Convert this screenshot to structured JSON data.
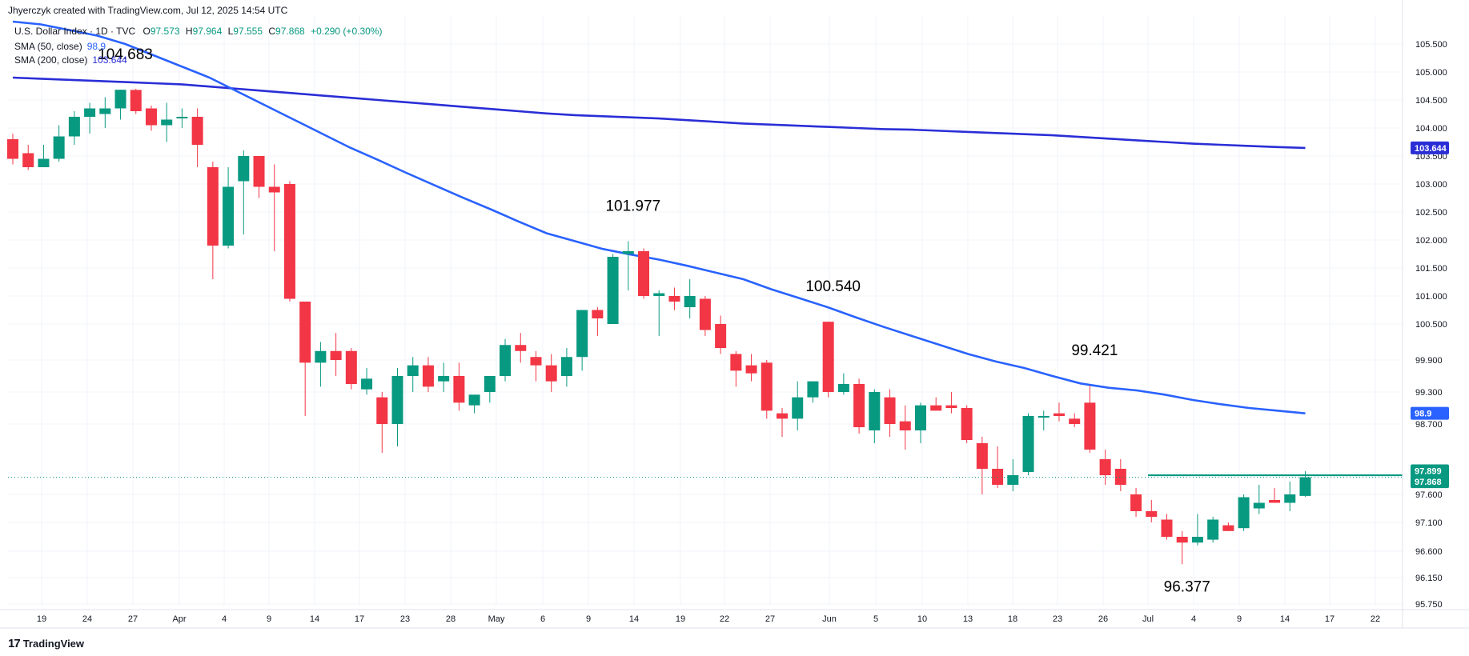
{
  "header": {
    "attribution": "Jhyerczyk created with TradingView.com, Jul 12, 2025 14:54 UTC",
    "symbol": "U.S. Dollar Index · 1D · TVC",
    "o_label": "O",
    "o": "97.573",
    "h_label": "H",
    "h": "97.964",
    "l_label": "L",
    "l": "97.555",
    "c_label": "C",
    "c": "97.868",
    "change": "+0.290 (+0.30%)"
  },
  "indicators": [
    {
      "label": "SMA (50, close)",
      "value": "98.9",
      "color": "#2962ff"
    },
    {
      "label": "SMA (200, close)",
      "value": "103.644",
      "color": "#2a2ed6"
    }
  ],
  "footer": {
    "logo": "17",
    "brand": "TradingView"
  },
  "colors": {
    "up": "#089981",
    "down": "#f23645",
    "sma50": "#2962ff",
    "sma200": "#2a2ed6",
    "resistance": "#089981"
  },
  "chart_data": {
    "type": "candlestick",
    "ylim": [
      95.75,
      105.85
    ],
    "y_ticks": [
      "105.500",
      "105.000",
      "104.500",
      "104.000",
      "103.500",
      "103.000",
      "102.500",
      "102.000",
      "101.500",
      "101.000",
      "100.500",
      "99.900",
      "99.300",
      "98.700",
      "97.600",
      "97.100",
      "96.600",
      "96.150",
      "95.750"
    ],
    "x_ticks": [
      "19",
      "24",
      "27",
      "Apr",
      "4",
      "9",
      "14",
      "17",
      "23",
      "28",
      "May",
      "6",
      "9",
      "14",
      "19",
      "22",
      "27",
      "Jun",
      "5",
      "10",
      "13",
      "18",
      "23",
      "26",
      "Jul",
      "4",
      "9",
      "14",
      "17",
      "22"
    ],
    "candles": [
      {
        "o": 103.8,
        "h": 103.9,
        "l": 103.35,
        "c": 103.45
      },
      {
        "o": 103.55,
        "h": 103.7,
        "l": 103.25,
        "c": 103.3
      },
      {
        "o": 103.3,
        "h": 103.7,
        "l": 103.3,
        "c": 103.45
      },
      {
        "o": 103.45,
        "h": 104.05,
        "l": 103.4,
        "c": 103.85
      },
      {
        "o": 103.85,
        "h": 104.3,
        "l": 103.7,
        "c": 104.2
      },
      {
        "o": 104.2,
        "h": 104.45,
        "l": 103.9,
        "c": 104.35
      },
      {
        "o": 104.25,
        "h": 104.55,
        "l": 104.0,
        "c": 104.35
      },
      {
        "o": 104.35,
        "h": 104.683,
        "l": 104.15,
        "c": 104.683
      },
      {
        "o": 104.68,
        "h": 104.7,
        "l": 104.25,
        "c": 104.3
      },
      {
        "o": 104.35,
        "h": 104.4,
        "l": 103.95,
        "c": 104.05
      },
      {
        "o": 104.05,
        "h": 104.45,
        "l": 103.75,
        "c": 104.15
      },
      {
        "o": 104.2,
        "h": 104.35,
        "l": 104.0,
        "c": 104.2
      },
      {
        "o": 104.2,
        "h": 104.35,
        "l": 103.3,
        "c": 103.7
      },
      {
        "o": 103.3,
        "h": 103.4,
        "l": 101.3,
        "c": 101.9
      },
      {
        "o": 101.9,
        "h": 103.3,
        "l": 101.85,
        "c": 102.95
      },
      {
        "o": 103.05,
        "h": 103.6,
        "l": 102.1,
        "c": 103.5
      },
      {
        "o": 103.5,
        "h": 103.5,
        "l": 102.75,
        "c": 102.95
      },
      {
        "o": 102.95,
        "h": 103.35,
        "l": 101.8,
        "c": 102.85
      },
      {
        "o": 103.0,
        "h": 103.05,
        "l": 100.9,
        "c": 100.95
      },
      {
        "o": 100.9,
        "h": 100.9,
        "l": 98.85,
        "c": 99.85
      },
      {
        "o": 99.85,
        "h": 100.2,
        "l": 99.4,
        "c": 100.05
      },
      {
        "o": 100.05,
        "h": 100.35,
        "l": 99.6,
        "c": 99.9
      },
      {
        "o": 100.05,
        "h": 100.1,
        "l": 99.35,
        "c": 99.45
      },
      {
        "o": 99.35,
        "h": 99.75,
        "l": 99.25,
        "c": 99.55
      },
      {
        "o": 99.2,
        "h": 99.3,
        "l": 98.25,
        "c": 98.7
      },
      {
        "o": 98.7,
        "h": 99.75,
        "l": 98.35,
        "c": 99.6
      },
      {
        "o": 99.6,
        "h": 99.95,
        "l": 99.3,
        "c": 99.8
      },
      {
        "o": 99.8,
        "h": 99.95,
        "l": 99.3,
        "c": 99.4
      },
      {
        "o": 99.5,
        "h": 99.85,
        "l": 99.3,
        "c": 99.6
      },
      {
        "o": 99.6,
        "h": 99.85,
        "l": 98.95,
        "c": 99.1
      },
      {
        "o": 99.05,
        "h": 99.25,
        "l": 98.9,
        "c": 99.25
      },
      {
        "o": 99.3,
        "h": 99.6,
        "l": 99.1,
        "c": 99.6
      },
      {
        "o": 99.6,
        "h": 100.25,
        "l": 99.5,
        "c": 100.15
      },
      {
        "o": 100.15,
        "h": 100.35,
        "l": 99.85,
        "c": 100.05
      },
      {
        "o": 99.95,
        "h": 100.05,
        "l": 99.5,
        "c": 99.8
      },
      {
        "o": 99.8,
        "h": 100.0,
        "l": 99.3,
        "c": 99.5
      },
      {
        "o": 99.6,
        "h": 100.1,
        "l": 99.4,
        "c": 99.95
      },
      {
        "o": 99.95,
        "h": 100.75,
        "l": 99.7,
        "c": 100.75
      },
      {
        "o": 100.75,
        "h": 100.8,
        "l": 100.3,
        "c": 100.6
      },
      {
        "o": 100.5,
        "h": 101.75,
        "l": 100.5,
        "c": 101.7
      },
      {
        "o": 101.75,
        "h": 101.977,
        "l": 101.1,
        "c": 101.8
      },
      {
        "o": 101.8,
        "h": 101.85,
        "l": 100.95,
        "c": 101.0
      },
      {
        "o": 101.0,
        "h": 101.1,
        "l": 100.3,
        "c": 101.05
      },
      {
        "o": 101.0,
        "h": 101.15,
        "l": 100.75,
        "c": 100.9
      },
      {
        "o": 100.8,
        "h": 101.3,
        "l": 100.6,
        "c": 101.0
      },
      {
        "o": 100.95,
        "h": 101.0,
        "l": 100.3,
        "c": 100.4
      },
      {
        "o": 100.5,
        "h": 100.65,
        "l": 100.0,
        "c": 100.1
      },
      {
        "o": 100.0,
        "h": 100.05,
        "l": 99.4,
        "c": 99.7
      },
      {
        "o": 99.8,
        "h": 100.0,
        "l": 99.5,
        "c": 99.65
      },
      {
        "o": 99.85,
        "h": 99.9,
        "l": 98.8,
        "c": 98.95
      },
      {
        "o": 98.9,
        "h": 99.0,
        "l": 98.5,
        "c": 98.8
      },
      {
        "o": 98.8,
        "h": 99.5,
        "l": 98.6,
        "c": 99.2
      },
      {
        "o": 99.2,
        "h": 99.5,
        "l": 99.1,
        "c": 99.5
      },
      {
        "o": 100.54,
        "h": 100.54,
        "l": 99.2,
        "c": 99.3
      },
      {
        "o": 99.3,
        "h": 99.65,
        "l": 99.25,
        "c": 99.45
      },
      {
        "o": 99.45,
        "h": 99.55,
        "l": 98.55,
        "c": 98.65
      },
      {
        "o": 98.6,
        "h": 99.35,
        "l": 98.4,
        "c": 99.3
      },
      {
        "o": 99.2,
        "h": 99.35,
        "l": 98.5,
        "c": 98.7
      },
      {
        "o": 98.75,
        "h": 99.05,
        "l": 98.3,
        "c": 98.6
      },
      {
        "o": 98.6,
        "h": 99.1,
        "l": 98.4,
        "c": 99.05
      },
      {
        "o": 99.05,
        "h": 99.2,
        "l": 98.95,
        "c": 98.95
      },
      {
        "o": 99.05,
        "h": 99.3,
        "l": 98.9,
        "c": 99.0
      },
      {
        "o": 99.0,
        "h": 99.05,
        "l": 98.4,
        "c": 98.45
      },
      {
        "o": 98.4,
        "h": 98.5,
        "l": 97.6,
        "c": 98.0
      },
      {
        "o": 98.0,
        "h": 98.35,
        "l": 97.7,
        "c": 97.75
      },
      {
        "o": 97.75,
        "h": 98.15,
        "l": 97.65,
        "c": 97.9
      },
      {
        "o": 97.95,
        "h": 98.9,
        "l": 97.9,
        "c": 98.85
      },
      {
        "o": 98.85,
        "h": 98.95,
        "l": 98.6,
        "c": 98.85
      },
      {
        "o": 98.9,
        "h": 99.1,
        "l": 98.75,
        "c": 98.85
      },
      {
        "o": 98.8,
        "h": 98.9,
        "l": 98.65,
        "c": 98.7
      },
      {
        "o": 99.1,
        "h": 99.421,
        "l": 98.25,
        "c": 98.3
      },
      {
        "o": 98.15,
        "h": 98.3,
        "l": 97.75,
        "c": 97.9
      },
      {
        "o": 98.0,
        "h": 98.15,
        "l": 97.65,
        "c": 97.75
      },
      {
        "o": 97.6,
        "h": 97.7,
        "l": 97.2,
        "c": 97.3
      },
      {
        "o": 97.3,
        "h": 97.5,
        "l": 97.1,
        "c": 97.2
      },
      {
        "o": 97.15,
        "h": 97.25,
        "l": 96.8,
        "c": 96.85
      },
      {
        "o": 96.85,
        "h": 96.95,
        "l": 96.377,
        "c": 96.75
      },
      {
        "o": 96.75,
        "h": 97.25,
        "l": 96.7,
        "c": 96.85
      },
      {
        "o": 96.8,
        "h": 97.2,
        "l": 96.75,
        "c": 97.15
      },
      {
        "o": 97.05,
        "h": 97.1,
        "l": 96.95,
        "c": 96.95
      },
      {
        "o": 97.0,
        "h": 97.6,
        "l": 96.95,
        "c": 97.55
      },
      {
        "o": 97.35,
        "h": 97.75,
        "l": 97.25,
        "c": 97.45
      },
      {
        "o": 97.5,
        "h": 97.7,
        "l": 97.45,
        "c": 97.45
      },
      {
        "o": 97.45,
        "h": 97.8,
        "l": 97.3,
        "c": 97.6
      },
      {
        "o": 97.573,
        "h": 97.964,
        "l": 97.555,
        "c": 97.868
      }
    ],
    "sma50": [
      105.9,
      105.85,
      105.75,
      105.65,
      105.5,
      105.3,
      105.1,
      104.9,
      104.65,
      104.4,
      104.15,
      103.9,
      103.65,
      103.43,
      103.2,
      102.98,
      102.76,
      102.55,
      102.33,
      102.12,
      101.98,
      101.84,
      101.74,
      101.65,
      101.54,
      101.42,
      101.3,
      101.12,
      100.96,
      100.8,
      100.62,
      100.45,
      100.3,
      100.15,
      100.0,
      99.87,
      99.75,
      99.6,
      99.46,
      99.38,
      99.33,
      99.25,
      99.15,
      99.07,
      99.0,
      98.95,
      98.9
    ],
    "sma200": [
      104.9,
      104.88,
      104.86,
      104.84,
      104.82,
      104.8,
      104.78,
      104.74,
      104.7,
      104.66,
      104.62,
      104.58,
      104.54,
      104.5,
      104.46,
      104.42,
      104.38,
      104.34,
      104.3,
      104.26,
      104.23,
      104.21,
      104.19,
      104.17,
      104.14,
      104.11,
      104.08,
      104.06,
      104.04,
      104.02,
      104.0,
      103.98,
      103.97,
      103.95,
      103.93,
      103.91,
      103.89,
      103.87,
      103.84,
      103.81,
      103.78,
      103.75,
      103.72,
      103.7,
      103.68,
      103.66,
      103.644
    ],
    "resistance": 97.899,
    "last_price": "97.868",
    "resistance_label": "97.899",
    "sma50_label": "98.9",
    "sma200_label": "103.644",
    "annotations": [
      {
        "text": "104.683",
        "value": 104.683
      },
      {
        "text": "101.977",
        "value": 101.977
      },
      {
        "text": "100.540",
        "value": 100.54
      },
      {
        "text": "99.421",
        "value": 99.421
      },
      {
        "text": "96.377",
        "value": 96.377
      }
    ]
  }
}
